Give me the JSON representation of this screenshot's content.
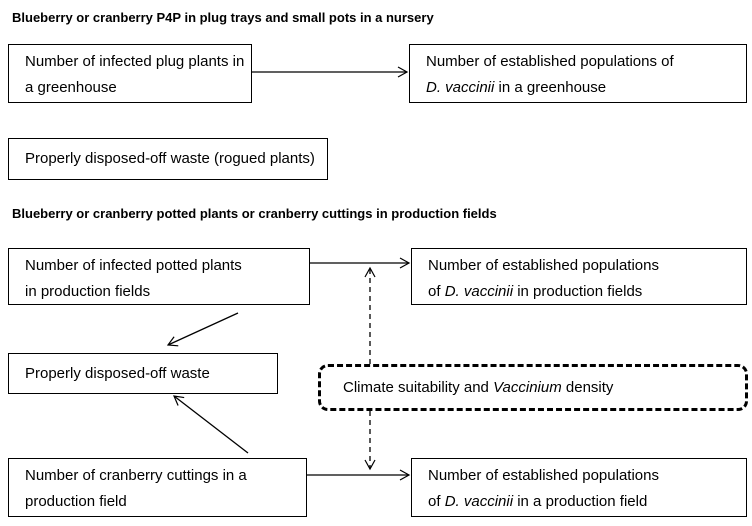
{
  "titles": [
    "Blueberry or cranberry P4P in plug trays and small pots in a nursery",
    "Blueberry or cranberry potted plants or cranberry cuttings in production fields"
  ],
  "nodes": [
    {
      "lines": [
        [
          "Number of infected plug plants in"
        ],
        [
          "a greenhouse"
        ]
      ]
    },
    {
      "lines": [
        [
          "Number of established populations of"
        ],
        [
          "D. vaccinii",
          " in a greenhouse"
        ]
      ]
    },
    {
      "lines": [
        [
          "Properly disposed-off waste (rogued plants)"
        ]
      ]
    },
    {
      "lines": [
        [
          "Number of infected potted plants"
        ],
        [
          "in production fields"
        ]
      ]
    },
    {
      "lines": [
        [
          "Number of established populations"
        ],
        [
          "of ",
          "D. vaccinii",
          " in production fields"
        ]
      ]
    },
    {
      "lines": [
        [
          "Properly disposed-off waste"
        ]
      ]
    },
    {
      "lines": [
        [
          "Climate suitability and ",
          "Vaccinium",
          " density"
        ]
      ]
    },
    {
      "lines": [
        [
          "Number of cranberry cuttings in a"
        ],
        [
          "production field"
        ]
      ]
    },
    {
      "lines": [
        [
          "Number of established populations"
        ],
        [
          "of ",
          "D. vaccinii",
          " in a production field"
        ]
      ]
    }
  ]
}
